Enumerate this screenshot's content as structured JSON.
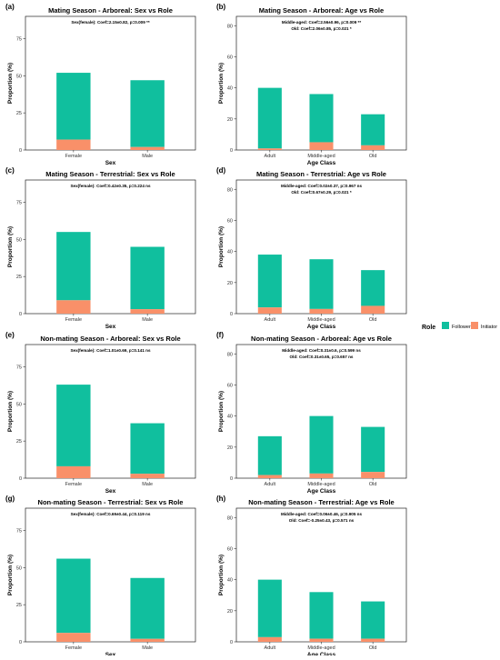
{
  "colors": {
    "follower": "#10bf9e",
    "initiator": "#f99069"
  },
  "legend": {
    "title": "Role",
    "items": [
      {
        "label": "Follower",
        "color": "#10bf9e"
      },
      {
        "label": "Initiator",
        "color": "#f99069"
      }
    ]
  },
  "chart_data": [
    {
      "type": "bar",
      "panel": "(a)",
      "title": "Mating Season - Arboreal: Sex vs Role",
      "annotations": [
        "Sex(female): Coef=2.15±0.82, p=0.009 **"
      ],
      "xlabel": "Sex",
      "ylabel": "Proportion (%)",
      "categories": [
        "Female",
        "Male"
      ],
      "series": [
        {
          "name": "Follower",
          "values": [
            45,
            45
          ]
        },
        {
          "name": "Initiator",
          "values": [
            7,
            2
          ]
        }
      ],
      "yticks": [
        0,
        25,
        50,
        75
      ],
      "ylim": [
        0,
        90
      ],
      "stacked": true
    },
    {
      "type": "bar",
      "panel": "(b)",
      "title": "Mating Season - Arboreal: Age vs Role",
      "annotations": [
        "Middle-aged: Coef=2.56±0.96, p=0.009 **",
        "Old: Coef=2.06±0.85, p=0.021 *"
      ],
      "xlabel": "Age Class",
      "ylabel": "Proportion (%)",
      "categories": [
        "Adult",
        "Middle-aged",
        "Old"
      ],
      "series": [
        {
          "name": "Follower",
          "values": [
            39,
            31,
            20
          ]
        },
        {
          "name": "Initiator",
          "values": [
            1,
            5,
            3
          ]
        }
      ],
      "yticks": [
        0,
        20,
        40,
        60,
        80
      ],
      "ylim": [
        0,
        86
      ],
      "stacked": true
    },
    {
      "type": "bar",
      "panel": "(c)",
      "title": "Mating Season - Terrestrial: Sex vs Role",
      "annotations": [
        "Sex(female): Coef=0.42±0.35, p=0.224 ns"
      ],
      "xlabel": "Sex",
      "ylabel": "Proportion (%)",
      "categories": [
        "Female",
        "Male"
      ],
      "series": [
        {
          "name": "Follower",
          "values": [
            46,
            42
          ]
        },
        {
          "name": "Initiator",
          "values": [
            9,
            3
          ]
        }
      ],
      "yticks": [
        0,
        25,
        50,
        75
      ],
      "ylim": [
        0,
        90
      ],
      "stacked": true
    },
    {
      "type": "bar",
      "panel": "(d)",
      "title": "Mating Season - Terrestrial: Age vs Role",
      "annotations": [
        "Middle-aged: Coef=0.02±0.37, p=0.967 ns",
        "Old: Coef=0.67±0.29, p=0.021 *"
      ],
      "xlabel": "Age Class",
      "ylabel": "Proportion (%)",
      "categories": [
        "Adult",
        "Middle-aged",
        "Old"
      ],
      "series": [
        {
          "name": "Follower",
          "values": [
            34,
            32,
            23
          ]
        },
        {
          "name": "Initiator",
          "values": [
            4,
            3,
            5
          ]
        }
      ],
      "yticks": [
        0,
        20,
        40,
        60,
        80
      ],
      "ylim": [
        0,
        86
      ],
      "stacked": true
    },
    {
      "type": "bar",
      "panel": "(e)",
      "title": "Non-mating Season - Arboreal: Sex vs Role",
      "annotations": [
        "Sex(female): Coef=1.01±0.69, p=0.141 ns"
      ],
      "xlabel": "Sex",
      "ylabel": "Proportion (%)",
      "categories": [
        "Female",
        "Male"
      ],
      "series": [
        {
          "name": "Follower",
          "values": [
            55,
            34
          ]
        },
        {
          "name": "Initiator",
          "values": [
            8,
            3
          ]
        }
      ],
      "yticks": [
        0,
        25,
        50,
        75
      ],
      "ylim": [
        0,
        90
      ],
      "stacked": true
    },
    {
      "type": "bar",
      "panel": "(f)",
      "title": "Non-mating Season - Arboreal: Age vs Role",
      "annotations": [
        "Middle-aged: Coef=0.31±0.6, p=0.599 ns",
        "Old: Coef=0.31±0.65, p=0.657 ns"
      ],
      "xlabel": "Age Class",
      "ylabel": "Proportion (%)",
      "categories": [
        "Adult",
        "Middle-aged",
        "Old"
      ],
      "series": [
        {
          "name": "Follower",
          "values": [
            25,
            37,
            29
          ]
        },
        {
          "name": "Initiator",
          "values": [
            2,
            3,
            4
          ]
        }
      ],
      "yticks": [
        0,
        20,
        40,
        60,
        80
      ],
      "ylim": [
        0,
        86
      ],
      "stacked": true
    },
    {
      "type": "bar",
      "panel": "(g)",
      "title": "Non-mating Season - Terrestrial: Sex vs Role",
      "annotations": [
        "Sex(female): Coef=0.69±0.44, p=0.119 ns"
      ],
      "xlabel": "Sex",
      "ylabel": "Proportion (%)",
      "categories": [
        "Female",
        "Male"
      ],
      "series": [
        {
          "name": "Follower",
          "values": [
            50,
            41
          ]
        },
        {
          "name": "Initiator",
          "values": [
            6,
            2
          ]
        }
      ],
      "yticks": [
        0,
        25,
        50,
        75
      ],
      "ylim": [
        0,
        90
      ],
      "stacked": true
    },
    {
      "type": "bar",
      "panel": "(h)",
      "title": "Non-mating Season - Terrestrial: Age vs Role",
      "annotations": [
        "Middle-aged: Coef=0.06±0.46, p=0.905 ns",
        "Old: Coef=-0.25±0.43, p=0.571 ns"
      ],
      "xlabel": "Age Class",
      "ylabel": "Proportion (%)",
      "categories": [
        "Adult",
        "Middle-aged",
        "Old"
      ],
      "series": [
        {
          "name": "Follower",
          "values": [
            37,
            30,
            24
          ]
        },
        {
          "name": "Initiator",
          "values": [
            3,
            2,
            2
          ]
        }
      ],
      "yticks": [
        0,
        20,
        40,
        60,
        80
      ],
      "ylim": [
        0,
        86
      ],
      "stacked": true
    }
  ]
}
